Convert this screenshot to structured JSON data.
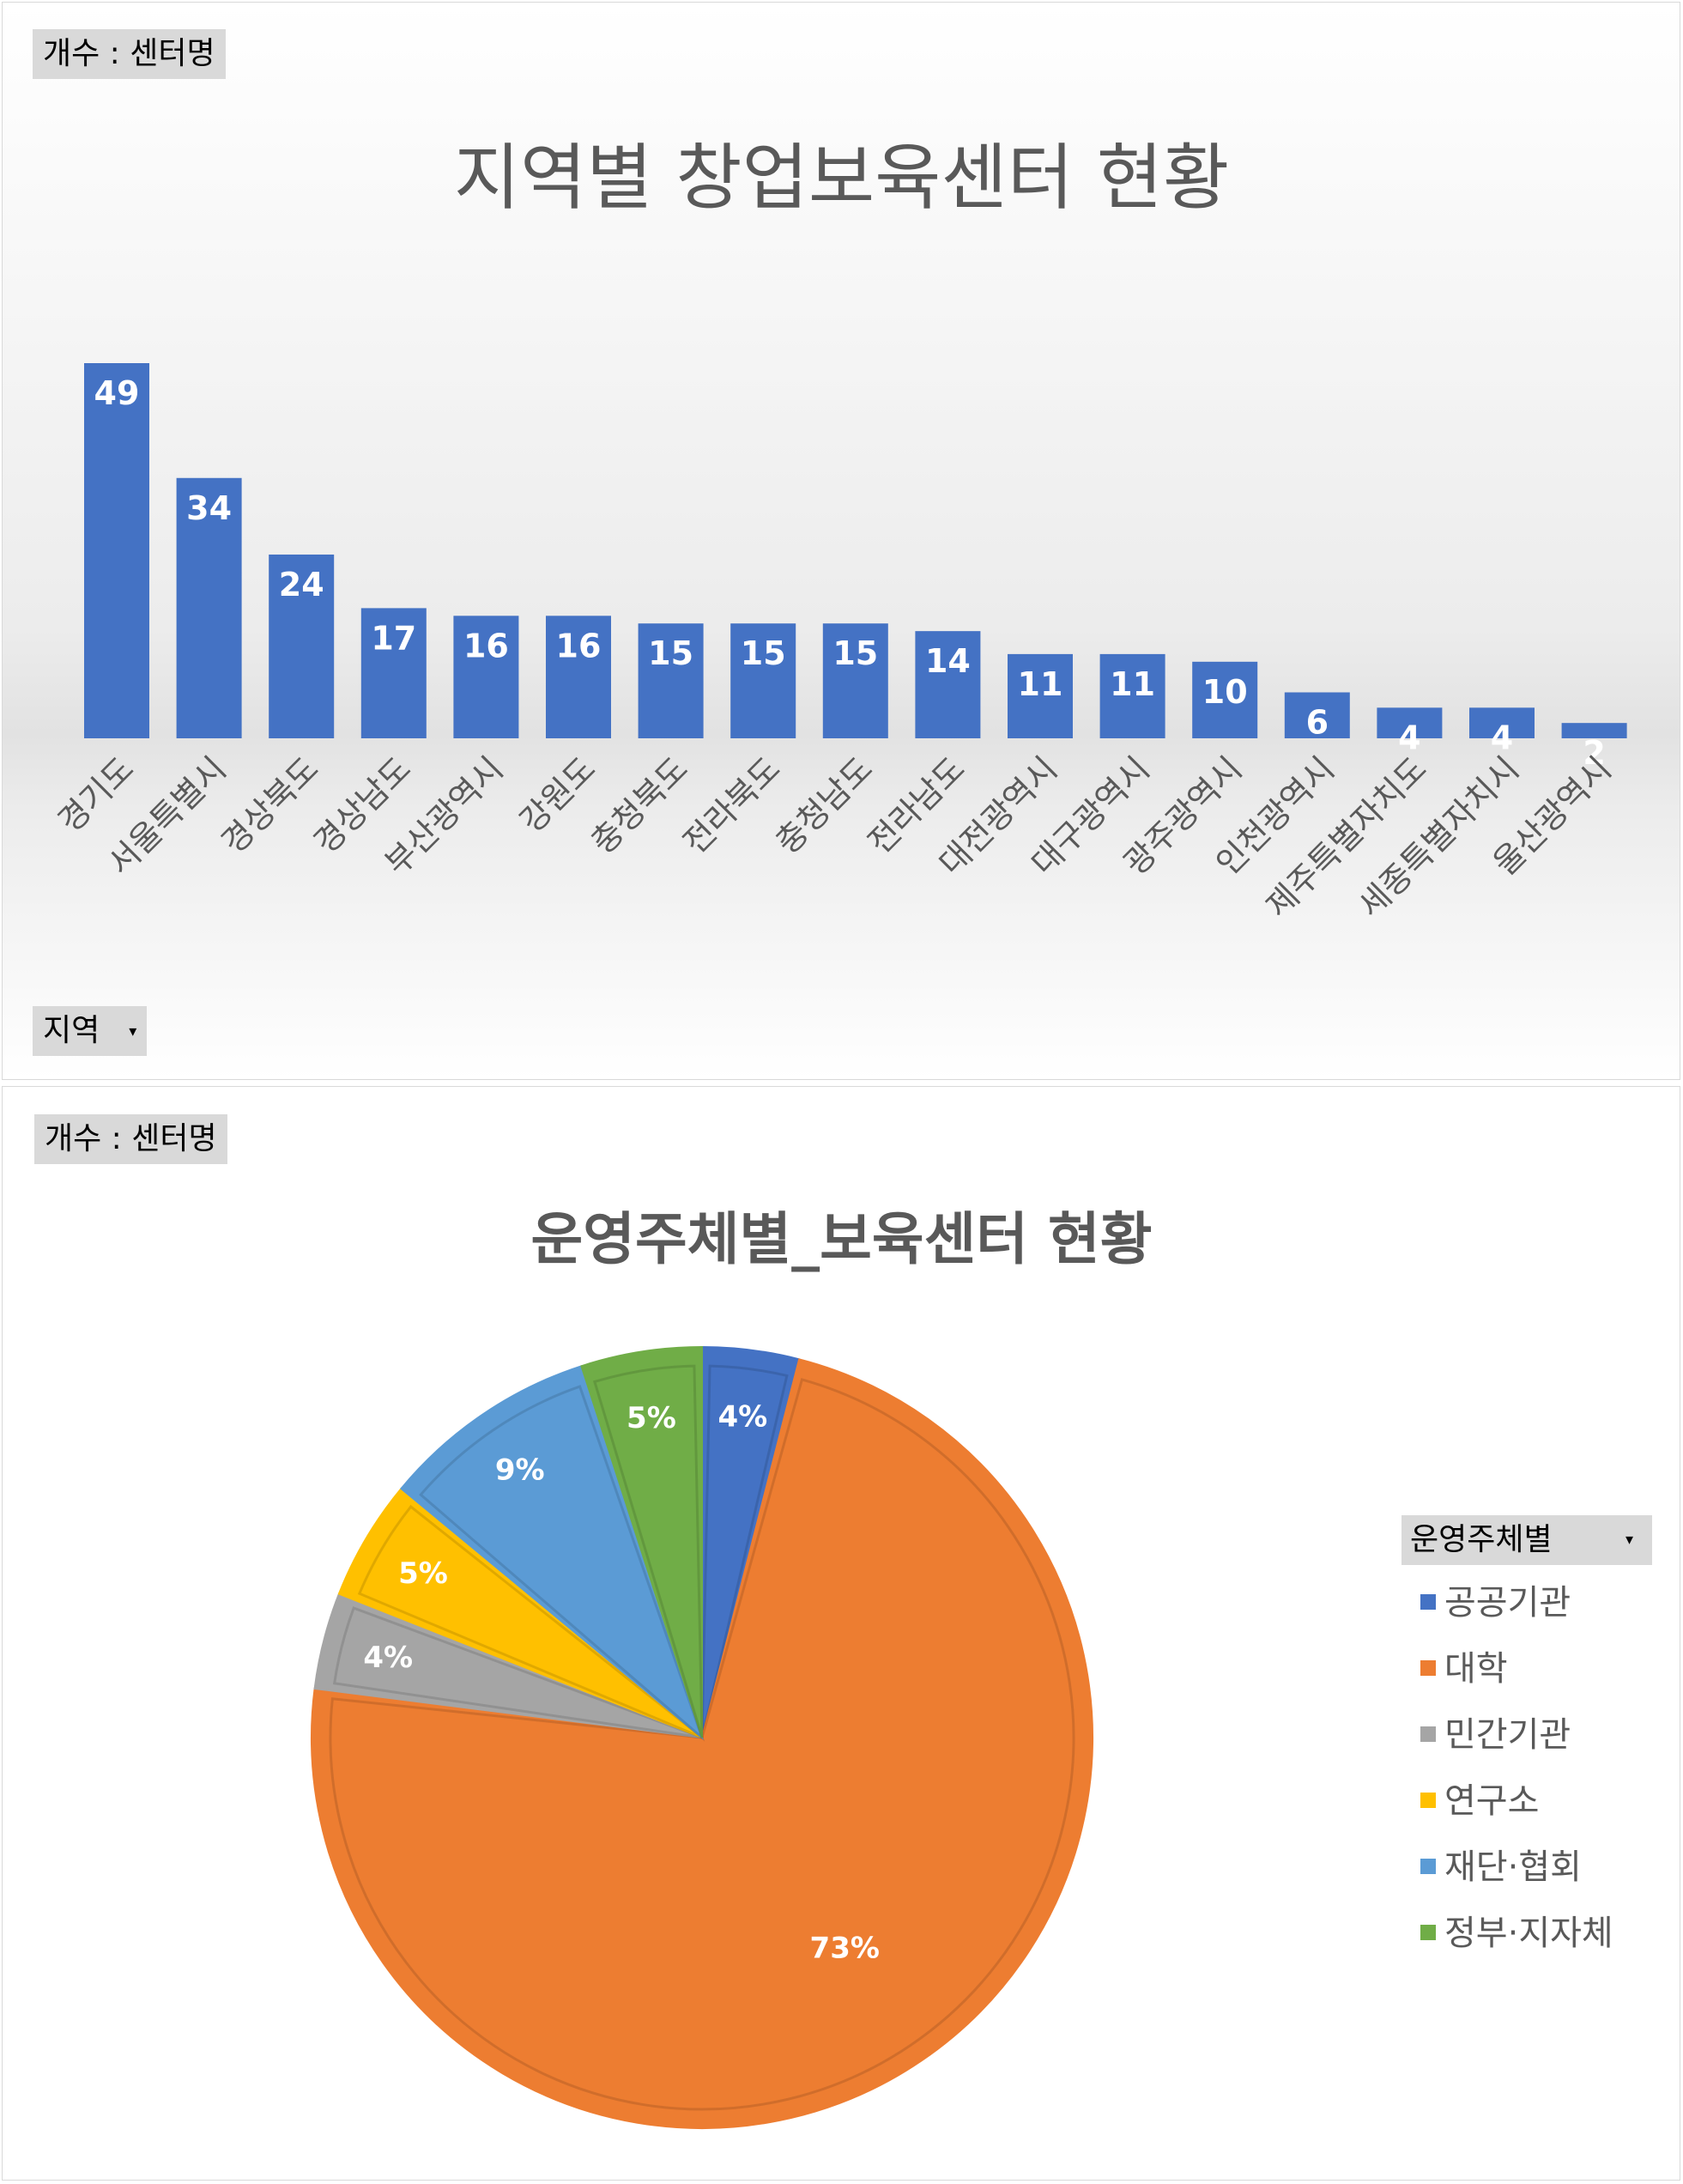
{
  "chart_data": [
    {
      "type": "bar",
      "title": "지역별 창업보육센터 현황",
      "value_field_label": "개수 : 센터명",
      "axis_field_label": "지역",
      "categories": [
        "경기도",
        "서울특별시",
        "경상북도",
        "경상남도",
        "부산광역시",
        "강원도",
        "충청북도",
        "전라북도",
        "충청남도",
        "전라남도",
        "대전광역시",
        "대구광역시",
        "광주광역시",
        "인천광역시",
        "제주특별자치도",
        "세종특별자치시",
        "울산광역시"
      ],
      "values": [
        49,
        34,
        24,
        17,
        16,
        16,
        15,
        15,
        15,
        14,
        11,
        11,
        10,
        6,
        4,
        4,
        2
      ],
      "color": "#4472C4",
      "ylim": [
        0,
        49
      ],
      "grid": false,
      "data_labels": true
    },
    {
      "type": "pie",
      "title": "운영주체별_보육센터 현황",
      "value_field_label": "개수 : 센터명",
      "legend_title": "운영주체별",
      "legend_position": "right",
      "labels": [
        "공공기관",
        "대학",
        "민간기관",
        "연구소",
        "재단·협회",
        "정부·지자체"
      ],
      "values": [
        4,
        73,
        4,
        5,
        9,
        5
      ],
      "value_labels": [
        "4%",
        "73%",
        "4%",
        "5%",
        "9%",
        "5%"
      ],
      "colors": [
        "#4472C4",
        "#ED7D31",
        "#A5A5A5",
        "#FFC000",
        "#5B9BD5",
        "#70AD47"
      ]
    }
  ]
}
